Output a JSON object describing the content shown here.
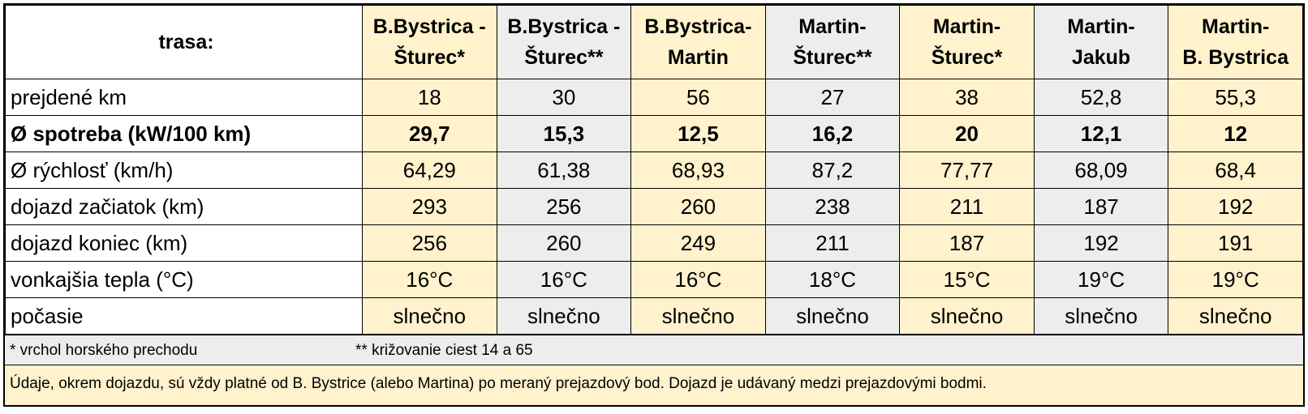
{
  "table": {
    "corner": "trasa:",
    "columns": [
      [
        "B.Bystrica -",
        "Šturec*"
      ],
      [
        "B.Bystrica -",
        "Šturec**"
      ],
      [
        "B.Bystrica-",
        "Martin"
      ],
      [
        "Martin-",
        "Šturec**"
      ],
      [
        "Martin-",
        "Šturec*"
      ],
      [
        "Martin-",
        "Jakub"
      ],
      [
        "Martin-",
        "B. Bystrica"
      ]
    ],
    "rows": [
      {
        "label": "prejdené km",
        "values": [
          "18",
          "30",
          "56",
          "27",
          "38",
          "52,8",
          "55,3"
        ]
      },
      {
        "label": "Ø spotreba (kW/100 km)",
        "values": [
          "29,7",
          "15,3",
          "12,5",
          "16,2",
          "20",
          "12,1",
          "12"
        ]
      },
      {
        "label": "Ø rýchlosť (km/h)",
        "values": [
          "64,29",
          "61,38",
          "68,93",
          "87,2",
          "77,77",
          "68,09",
          "68,4"
        ]
      },
      {
        "label": "dojazd začiatok (km)",
        "values": [
          "293",
          "256",
          "260",
          "238",
          "211",
          "187",
          "192"
        ]
      },
      {
        "label": "dojazd koniec (km)",
        "values": [
          "256",
          "260",
          "249",
          "211",
          "187",
          "192",
          "191"
        ]
      },
      {
        "label": "vonkajšia tepla (°C)",
        "values": [
          "16°C",
          "16°C",
          "16°C",
          "18°C",
          "15°C",
          "19°C",
          "19°C"
        ]
      },
      {
        "label": "počasie",
        "values": [
          "slnečno",
          "slnečno",
          "slnečno",
          "slnečno",
          "slnečno",
          "slnečno",
          "slnečno"
        ]
      }
    ],
    "footnotes": [
      "* vrchol horského prechodu",
      "** križovanie ciest 14 a 65"
    ],
    "note": "Údaje, okrem dojazdu, sú vždy platné od B. Bystrice (alebo Martina) po meraný prejazdový bod. Dojazd je udávaný medzi prejazdovými bodmi."
  }
}
